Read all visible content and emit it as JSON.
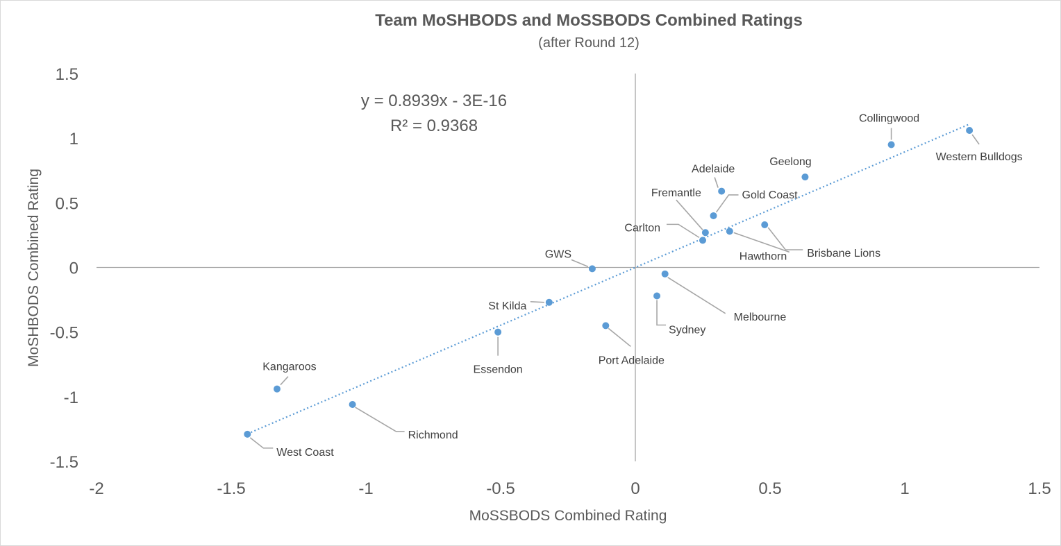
{
  "chart_data": {
    "type": "scatter",
    "title": "Team MoSHBODS and MoSSBODS Combined Ratings",
    "subtitle": "(after Round 12)",
    "xlabel": "MoSSBODS Combined Rating",
    "ylabel": "MoSHBODS Combined Rating",
    "xlim": [
      -2,
      1.5
    ],
    "ylim": [
      -1.5,
      1.5
    ],
    "x_ticks": [
      "-2",
      "-1.5",
      "-1",
      "-0.5",
      "0",
      "0.5",
      "1",
      "1.5"
    ],
    "y_ticks": [
      "-1.5",
      "-1",
      "-0.5",
      "0",
      "0.5",
      "1",
      "1.5"
    ],
    "point_color": "#5b9bd5",
    "trendline": {
      "type": "linear",
      "slope": 0.8939,
      "intercept": 0,
      "equation": "y = 0.8939x - 3E-16",
      "r_squared": "R² = 0.9368",
      "color": "#5b9bd5"
    },
    "points": [
      {
        "team": "Western Bulldogs",
        "x": 1.24,
        "y": 1.06
      },
      {
        "team": "Collingwood",
        "x": 0.95,
        "y": 0.95
      },
      {
        "team": "Geelong",
        "x": 0.63,
        "y": 0.7
      },
      {
        "team": "Adelaide",
        "x": 0.32,
        "y": 0.59
      },
      {
        "team": "Gold Coast",
        "x": 0.29,
        "y": 0.4
      },
      {
        "team": "Fremantle",
        "x": 0.26,
        "y": 0.27
      },
      {
        "team": "Hawthorn",
        "x": 0.35,
        "y": 0.28
      },
      {
        "team": "Brisbane Lions",
        "x": 0.48,
        "y": 0.33
      },
      {
        "team": "Carlton",
        "x": 0.25,
        "y": 0.21
      },
      {
        "team": "GWS",
        "x": -0.16,
        "y": -0.01
      },
      {
        "team": "Melbourne",
        "x": 0.11,
        "y": -0.05
      },
      {
        "team": "Sydney",
        "x": 0.08,
        "y": -0.22
      },
      {
        "team": "St Kilda",
        "x": -0.32,
        "y": -0.27
      },
      {
        "team": "Port Adelaide",
        "x": -0.11,
        "y": -0.45
      },
      {
        "team": "Essendon",
        "x": -0.51,
        "y": -0.5
      },
      {
        "team": "Kangaroos",
        "x": -1.33,
        "y": -0.94
      },
      {
        "team": "Richmond",
        "x": -1.05,
        "y": -1.06
      },
      {
        "team": "West Coast",
        "x": -1.44,
        "y": -1.29
      }
    ]
  }
}
